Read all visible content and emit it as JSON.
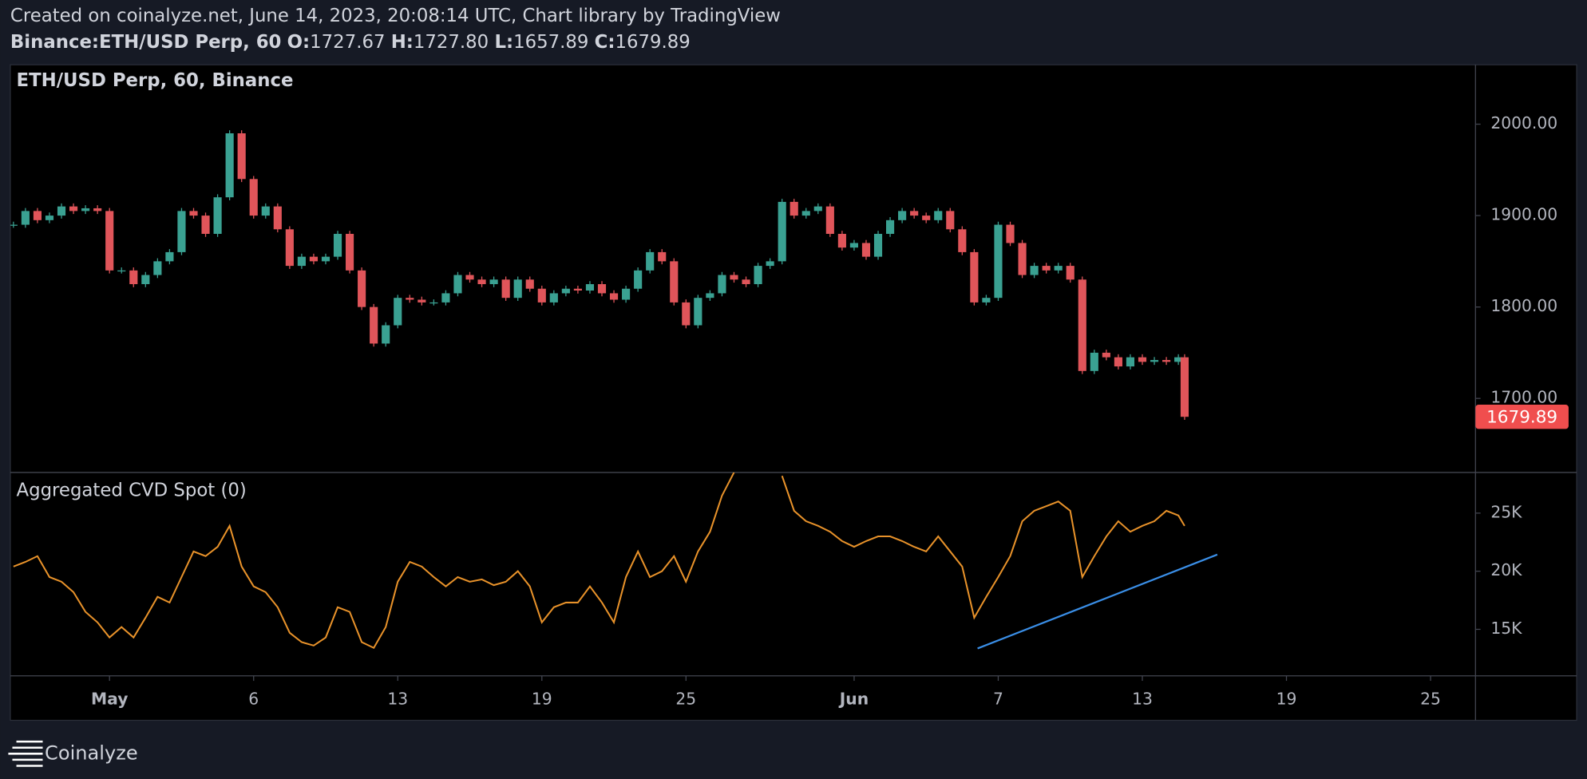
{
  "header": {
    "created": "Created on coinalyze.net, June 14, 2023, 20:08:14 UTC, Chart library by TradingView",
    "symbol": "Binance:ETH/USD Perp, 60",
    "ohlc": [
      {
        "label": "O:",
        "value": "1727.67"
      },
      {
        "label": "H:",
        "value": "1727.80"
      },
      {
        "label": "L:",
        "value": "1657.89"
      },
      {
        "label": "C:",
        "value": "1679.89"
      }
    ]
  },
  "chart_data": [
    {
      "type": "candlestick",
      "title": "ETH/USD Perp, 60, Binance",
      "up_color": "#3aa192",
      "down_color": "#e0555a",
      "ylim": [
        1619,
        2065
      ],
      "yticks": [
        {
          "value": 1700,
          "label": "1700.00"
        },
        {
          "value": 1800,
          "label": "1800.00"
        },
        {
          "value": 1900,
          "label": "1900.00"
        },
        {
          "value": 2000,
          "label": "2000.00"
        }
      ],
      "last_color": "#f04e4e",
      "values": [
        1890,
        1905,
        1895,
        1900,
        1910,
        1905,
        1908,
        1905,
        1840,
        1840,
        1825,
        1835,
        1850,
        1860,
        1905,
        1900,
        1880,
        1920,
        1990,
        1940,
        1900,
        1910,
        1885,
        1845,
        1855,
        1850,
        1855,
        1880,
        1840,
        1800,
        1760,
        1780,
        1810,
        1808,
        1805,
        1805,
        1815,
        1835,
        1830,
        1825,
        1830,
        1810,
        1830,
        1820,
        1805,
        1815,
        1820,
        1818,
        1825,
        1815,
        1808,
        1820,
        1840,
        1860,
        1850,
        1805,
        1780,
        1810,
        1815,
        1835,
        1830,
        1825,
        1845,
        1850,
        1915,
        1900,
        1905,
        1910,
        1880,
        1865,
        1870,
        1855,
        1880,
        1895,
        1905,
        1900,
        1895,
        1905,
        1885,
        1860,
        1805,
        1810,
        1890,
        1870,
        1835,
        1845,
        1840,
        1845,
        1830,
        1730,
        1750,
        1745,
        1735,
        1745,
        1740,
        1742,
        1740,
        1745,
        1679.89
      ],
      "grid": false
    },
    {
      "type": "line",
      "title": "Aggregated CVD Spot (0)",
      "color": "#e8922a",
      "x": [
        -4,
        -3.5,
        -3,
        -2.5,
        -2,
        -1.5,
        -1,
        -0.5,
        0,
        0.5,
        1,
        1.5,
        2,
        2.5,
        3,
        3.5,
        4,
        4.5,
        5,
        5.5,
        6,
        6.5,
        7,
        7.5,
        8,
        8.5,
        9,
        9.5,
        10,
        10.5,
        11,
        11.5,
        12,
        12.5,
        13,
        13.5,
        14,
        14.5,
        15,
        15.5,
        16,
        16.5,
        17,
        17.5,
        18,
        18.5,
        19,
        19.5,
        20,
        20.5,
        21,
        21.5,
        22,
        22.5,
        23,
        23.5,
        24,
        24.5,
        25,
        25.5,
        26,
        26.5,
        27,
        27.5,
        28,
        28.5,
        29,
        29.5,
        30,
        30.5,
        31,
        31.5,
        32,
        32.5,
        33,
        33.5,
        34,
        34.5,
        35,
        35.5,
        36,
        36.5,
        37,
        37.5,
        38,
        38.5,
        39,
        39.5,
        40,
        40.5,
        41,
        41.5,
        42,
        42.5,
        43,
        43.5,
        44,
        44.5,
        44.76
      ],
      "values": [
        20400,
        20800,
        21300,
        19500,
        19100,
        18200,
        16500,
        15600,
        14300,
        15200,
        14300,
        16000,
        17800,
        17300,
        19500,
        21700,
        21300,
        22100,
        23900,
        20400,
        18700,
        18200,
        16900,
        14700,
        13900,
        13600,
        14300,
        16900,
        16500,
        13900,
        13400,
        15200,
        19100,
        20800,
        20400,
        19500,
        18700,
        19500,
        19100,
        19300,
        18800,
        19100,
        20000,
        18700,
        15600,
        16900,
        17300,
        17300,
        18700,
        17300,
        15600,
        19500,
        21700,
        19500,
        20000,
        21300,
        19100,
        21700,
        23400,
        26500,
        28500,
        null,
        null,
        null,
        28200,
        25200,
        24300,
        23900,
        23400,
        22600,
        22100,
        22600,
        23000,
        23000,
        22600,
        22100,
        21700,
        23000,
        21700,
        20400,
        16000,
        17800,
        19500,
        21300,
        24300,
        25200,
        25600,
        26000,
        25200,
        19500,
        21300,
        23000,
        24300,
        23400,
        23900,
        24300,
        25200,
        24800,
        23900
      ],
      "ylim": [
        11000,
        28500
      ],
      "yticks": [
        {
          "value": 15000,
          "label": "15K"
        },
        {
          "value": 20000,
          "label": "20K"
        },
        {
          "value": 25000,
          "label": "25K"
        }
      ],
      "xlim": [
        -4.13,
        56.87
      ],
      "xticks": [
        {
          "value": 0,
          "label": "May"
        },
        6,
        {
          "value": 12,
          "label": "13"
        },
        {
          "value": 18,
          "label": "19"
        },
        {
          "value": 24,
          "label": "25"
        },
        {
          "value": 31,
          "label": "Jun"
        },
        {
          "value": 37,
          "label": "7"
        },
        {
          "value": 43,
          "label": "13"
        },
        {
          "value": 49,
          "label": "19"
        },
        {
          "value": 55,
          "label": "25"
        }
      ],
      "trendline": {
        "x": [
          36.14,
          46.12
        ],
        "values": [
          13350,
          21430
        ],
        "color": "#3a8ee6"
      },
      "grid": false
    }
  ],
  "footer": {
    "brand": "Coinalyze"
  }
}
